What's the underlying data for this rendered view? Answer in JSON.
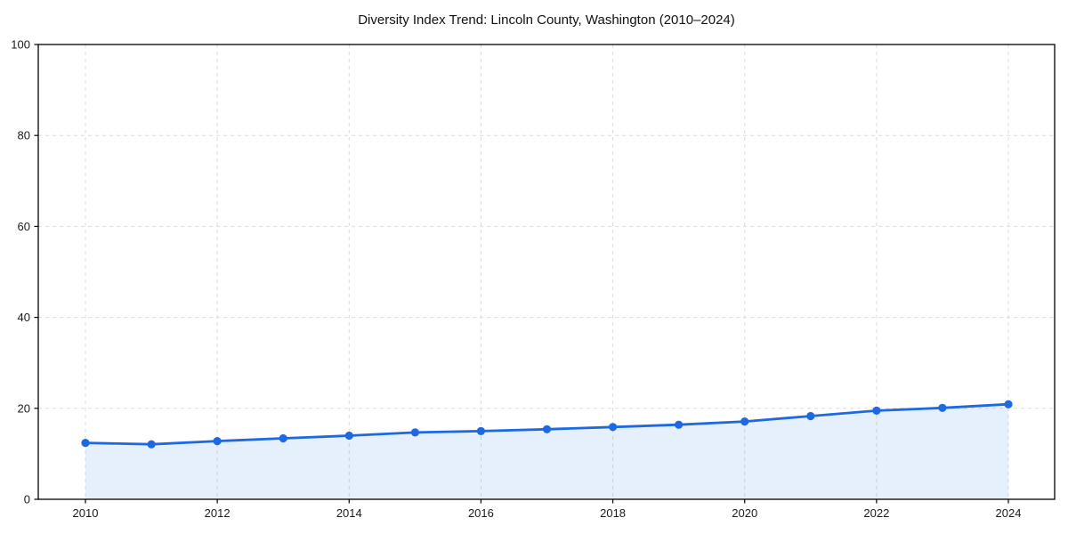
{
  "chart_data": {
    "type": "line",
    "title": "Diversity Index Trend: Lincoln County, Washington (2010–2024)",
    "xlabel": "",
    "ylabel": "",
    "x": [
      2010,
      2011,
      2012,
      2013,
      2014,
      2015,
      2016,
      2017,
      2018,
      2019,
      2020,
      2021,
      2022,
      2023,
      2024
    ],
    "series": [
      {
        "name": "Diversity Index",
        "values": [
          12.4,
          12.1,
          12.8,
          13.4,
          14.0,
          14.7,
          15.0,
          15.4,
          15.9,
          16.4,
          17.1,
          18.3,
          19.5,
          20.1,
          20.9
        ]
      }
    ],
    "x_tick_labels": [
      "2010",
      "2012",
      "2014",
      "2016",
      "2018",
      "2020",
      "2022",
      "2024"
    ],
    "x_tick_years": [
      2010,
      2012,
      2014,
      2016,
      2018,
      2020,
      2022,
      2024
    ],
    "y_ticks": [
      0,
      20,
      40,
      60,
      80,
      100
    ],
    "ylim": [
      0,
      100
    ],
    "grid": true,
    "legend_position": "none",
    "colors": {
      "line": "#1c69e3",
      "marker": "#1c69e3",
      "fill": "rgba(28, 105, 227, 0.11)",
      "gridline": "#dcdcdc",
      "spine": "#000000",
      "tick_label": "#1a1a1a"
    }
  }
}
